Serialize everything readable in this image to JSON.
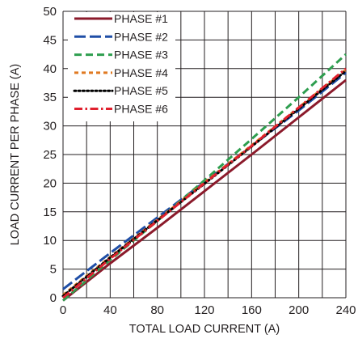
{
  "chart_data": {
    "type": "line",
    "xlabel": "TOTAL LOAD CURRENT (A)",
    "ylabel": "LOAD CURRENT PER PHASE (A)",
    "xlim": [
      0,
      240
    ],
    "ylim": [
      0,
      50
    ],
    "x_ticks": [
      0,
      40,
      80,
      120,
      160,
      200,
      240
    ],
    "y_ticks": [
      0,
      5,
      10,
      15,
      20,
      25,
      30,
      35,
      40,
      45,
      50
    ],
    "grid": true,
    "legend_position": "top-left",
    "series": [
      {
        "name": "PHASE #1",
        "color": "#8b1a2b",
        "dash": "solid",
        "points": [
          [
            0,
            -0.5
          ],
          [
            40,
            6.0
          ],
          [
            80,
            12.2
          ],
          [
            120,
            18.6
          ],
          [
            160,
            25.0
          ],
          [
            200,
            31.5
          ],
          [
            240,
            38.0
          ]
        ]
      },
      {
        "name": "PHASE #2",
        "color": "#1f4ea6",
        "dash": "long-dash",
        "points": [
          [
            0,
            1.5
          ],
          [
            40,
            7.8
          ],
          [
            80,
            14.0
          ],
          [
            120,
            20.2
          ],
          [
            160,
            26.5
          ],
          [
            200,
            32.7
          ],
          [
            240,
            39.3
          ]
        ]
      },
      {
        "name": "PHASE #3",
        "color": "#2e9e4f",
        "dash": "dash",
        "points": [
          [
            0,
            -0.5
          ],
          [
            40,
            6.6
          ],
          [
            80,
            13.4
          ],
          [
            120,
            20.5
          ],
          [
            160,
            27.7
          ],
          [
            200,
            35.0
          ],
          [
            240,
            42.5
          ]
        ]
      },
      {
        "name": "PHASE #4",
        "color": "#e07a22",
        "dash": "dot-dash-short",
        "points": [
          [
            0,
            0.5
          ],
          [
            40,
            7.1
          ],
          [
            80,
            13.6
          ],
          [
            120,
            20.1
          ],
          [
            160,
            26.6
          ],
          [
            200,
            33.2
          ],
          [
            240,
            39.8
          ]
        ]
      },
      {
        "name": "PHASE #5",
        "color": "#000000",
        "dash": "dotted",
        "points": [
          [
            0,
            0.3
          ],
          [
            40,
            7.0
          ],
          [
            80,
            13.5
          ],
          [
            120,
            19.9
          ],
          [
            160,
            26.4
          ],
          [
            200,
            33.0
          ],
          [
            240,
            39.6
          ]
        ]
      },
      {
        "name": "PHASE #6",
        "color": "#e0202e",
        "dash": "dash-dot",
        "points": [
          [
            0,
            0.0
          ],
          [
            40,
            6.8
          ],
          [
            80,
            13.4
          ],
          [
            120,
            20.0
          ],
          [
            160,
            26.5
          ],
          [
            200,
            33.2
          ],
          [
            240,
            40.0
          ]
        ]
      }
    ]
  }
}
